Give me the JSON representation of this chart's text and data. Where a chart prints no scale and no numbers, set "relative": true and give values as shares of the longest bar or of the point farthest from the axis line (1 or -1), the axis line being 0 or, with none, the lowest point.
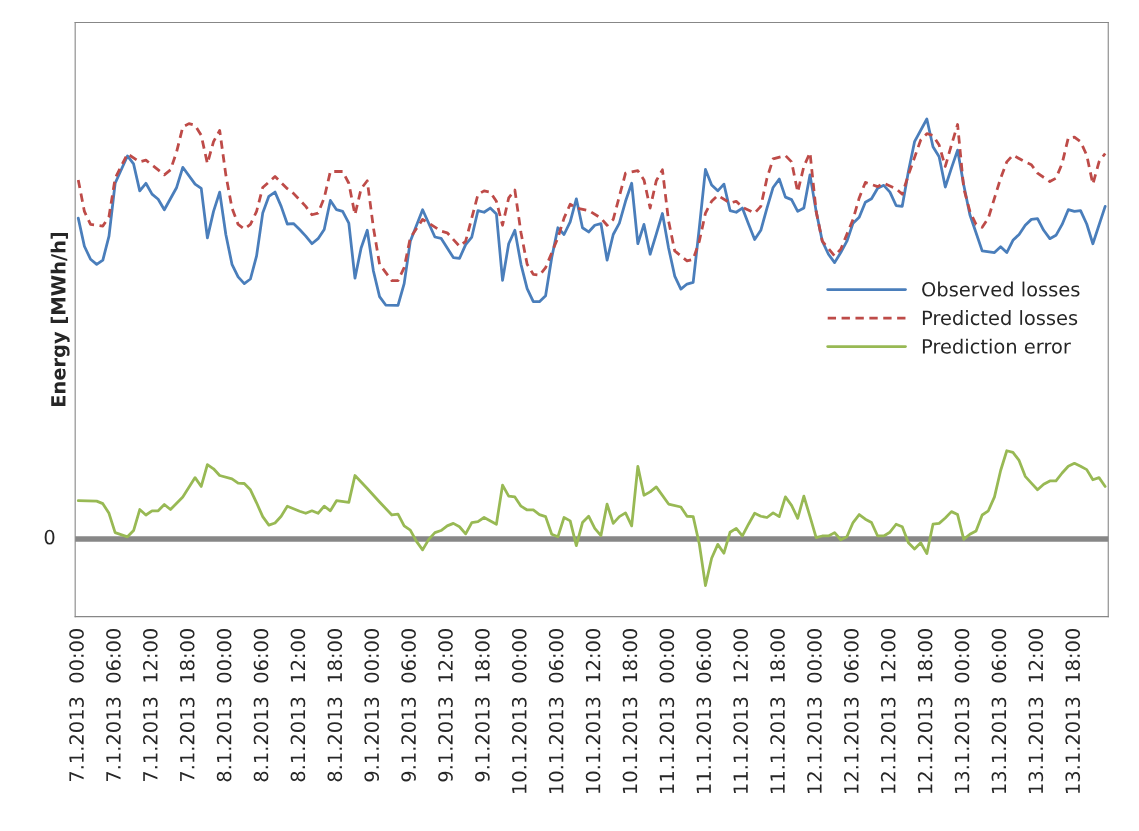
{
  "chart_data": {
    "type": "line",
    "relative": true,
    "ylabel": "Energy [MWh/h]",
    "xlim": [
      "2013-01-06T23:30",
      "2013-01-13T23:30"
    ],
    "xticks": [
      {
        "value": "2013-01-07T00:00",
        "label": "7.1.2013  00:00"
      },
      {
        "value": "2013-01-07T06:00",
        "label": "7.1.2013  06:00"
      },
      {
        "value": "2013-01-07T12:00",
        "label": "7.1.2013  12:00"
      },
      {
        "value": "2013-01-07T18:00",
        "label": "7.1.2013  18:00"
      },
      {
        "value": "2013-01-08T00:00",
        "label": "8.1.2013  00:00"
      },
      {
        "value": "2013-01-08T06:00",
        "label": "8.1.2013  06:00"
      },
      {
        "value": "2013-01-08T12:00",
        "label": "8.1.2013  12:00"
      },
      {
        "value": "2013-01-08T18:00",
        "label": "8.1.2013  18:00"
      },
      {
        "value": "2013-01-09T00:00",
        "label": "9.1.2013  00:00"
      },
      {
        "value": "2013-01-09T06:00",
        "label": "9.1.2013  06:00"
      },
      {
        "value": "2013-01-09T12:00",
        "label": "9.1.2013  12:00"
      },
      {
        "value": "2013-01-09T18:00",
        "label": "9.1.2013  18:00"
      },
      {
        "value": "2013-01-10T00:00",
        "label": "10.1.2013  00:00"
      },
      {
        "value": "2013-01-10T06:00",
        "label": "10.1.2013  06:00"
      },
      {
        "value": "2013-01-10T12:00",
        "label": "10.1.2013  12:00"
      },
      {
        "value": "2013-01-10T18:00",
        "label": "10.1.2013  18:00"
      },
      {
        "value": "2013-01-11T00:00",
        "label": "11.1.2013  00:00"
      },
      {
        "value": "2013-01-11T06:00",
        "label": "11.1.2013  06:00"
      },
      {
        "value": "2013-01-11T12:00",
        "label": "11.1.2013  12:00"
      },
      {
        "value": "2013-01-11T18:00",
        "label": "11.1.2013  18:00"
      },
      {
        "value": "2013-01-12T00:00",
        "label": "12.1.2013  00:00"
      },
      {
        "value": "2013-01-12T06:00",
        "label": "12.1.2013  06:00"
      },
      {
        "value": "2013-01-12T12:00",
        "label": "12.1.2013  12:00"
      },
      {
        "value": "2013-01-12T18:00",
        "label": "12.1.2013  18:00"
      },
      {
        "value": "2013-01-13T00:00",
        "label": "13.1.2013  00:00"
      },
      {
        "value": "2013-01-13T06:00",
        "label": "13.1.2013  06:00"
      },
      {
        "value": "2013-01-13T12:00",
        "label": "13.1.2013  12:00"
      },
      {
        "value": "2013-01-13T18:00",
        "label": "13.1.2013  18:00"
      }
    ],
    "grid": false,
    "legend": "right",
    "ref_lines": [
      {
        "axis": "y",
        "value": 0,
        "label": "0",
        "color": "#878787"
      }
    ],
    "series": [
      {
        "name": "Observed losses",
        "color": "#4a7ebb",
        "line_style": "solid",
        "x": [
          "2013-01-07T00:00",
          "2013-01-07T01:00",
          "2013-01-07T02:00",
          "2013-01-07T03:00",
          "2013-01-07T04:00",
          "2013-01-07T05:00",
          "2013-01-07T06:00",
          "2013-01-07T08:00",
          "2013-01-07T09:00",
          "2013-01-07T10:00",
          "2013-01-07T11:00",
          "2013-01-07T12:00",
          "2013-01-07T13:00",
          "2013-01-07T14:00",
          "2013-01-07T16:00",
          "2013-01-07T17:00",
          "2013-01-07T19:00",
          "2013-01-07T20:00",
          "2013-01-07T21:00",
          "2013-01-07T22:00",
          "2013-01-07T23:00",
          "2013-01-08T00:00",
          "2013-01-08T01:00",
          "2013-01-08T02:00",
          "2013-01-08T03:00",
          "2013-01-08T04:00",
          "2013-01-08T05:00",
          "2013-01-08T06:00",
          "2013-01-08T07:00",
          "2013-01-08T08:00",
          "2013-01-08T09:00",
          "2013-01-08T10:00",
          "2013-01-08T11:00",
          "2013-01-08T12:00",
          "2013-01-08T13:00",
          "2013-01-08T14:00",
          "2013-01-08T15:00",
          "2013-01-08T16:00",
          "2013-01-08T17:00",
          "2013-01-08T18:00",
          "2013-01-08T19:00",
          "2013-01-08T20:00",
          "2013-01-08T21:00",
          "2013-01-08T22:00",
          "2013-01-08T23:00",
          "2013-01-09T00:00",
          "2013-01-09T01:00",
          "2013-01-09T02:00",
          "2013-01-09T04:00",
          "2013-01-09T05:00",
          "2013-01-09T06:00",
          "2013-01-09T08:00",
          "2013-01-09T10:00",
          "2013-01-09T11:00",
          "2013-01-09T13:00",
          "2013-01-09T14:00",
          "2013-01-09T15:00",
          "2013-01-09T16:00",
          "2013-01-09T17:00",
          "2013-01-09T18:00",
          "2013-01-09T19:00",
          "2013-01-09T20:00",
          "2013-01-09T21:00",
          "2013-01-09T22:00",
          "2013-01-09T23:00",
          "2013-01-10T00:00",
          "2013-01-10T01:00",
          "2013-01-10T02:00",
          "2013-01-10T03:00",
          "2013-01-10T04:00",
          "2013-01-10T05:00",
          "2013-01-10T06:00",
          "2013-01-10T07:00",
          "2013-01-10T08:00",
          "2013-01-10T09:00",
          "2013-01-10T10:00",
          "2013-01-10T11:00",
          "2013-01-10T12:00",
          "2013-01-10T13:00",
          "2013-01-10T14:00",
          "2013-01-10T15:00",
          "2013-01-10T16:00",
          "2013-01-10T17:00",
          "2013-01-10T18:00",
          "2013-01-10T19:00",
          "2013-01-10T20:00",
          "2013-01-10T21:00",
          "2013-01-10T22:00",
          "2013-01-10T23:00",
          "2013-01-11T00:00",
          "2013-01-11T01:00",
          "2013-01-11T02:00",
          "2013-01-11T03:00",
          "2013-01-11T04:00",
          "2013-01-11T05:00",
          "2013-01-11T06:00",
          "2013-01-11T07:00",
          "2013-01-11T08:00",
          "2013-01-11T09:00",
          "2013-01-11T10:00",
          "2013-01-11T11:00",
          "2013-01-11T12:00",
          "2013-01-11T13:00",
          "2013-01-11T14:00",
          "2013-01-11T15:00",
          "2013-01-11T16:00",
          "2013-01-11T17:00",
          "2013-01-11T18:00",
          "2013-01-11T19:00",
          "2013-01-11T20:00",
          "2013-01-11T21:00",
          "2013-01-11T22:00",
          "2013-01-11T23:00",
          "2013-01-12T00:00",
          "2013-01-12T01:00",
          "2013-01-12T02:00",
          "2013-01-12T03:00",
          "2013-01-12T04:00",
          "2013-01-12T05:00",
          "2013-01-12T06:00",
          "2013-01-12T07:00",
          "2013-01-12T08:00",
          "2013-01-12T09:00",
          "2013-01-12T10:00",
          "2013-01-12T11:00",
          "2013-01-12T12:00",
          "2013-01-12T13:00",
          "2013-01-12T14:00",
          "2013-01-12T15:00",
          "2013-01-12T16:00",
          "2013-01-12T18:00",
          "2013-01-12T19:00",
          "2013-01-12T20:00",
          "2013-01-12T21:00",
          "2013-01-12T22:00",
          "2013-01-12T23:00",
          "2013-01-13T00:00",
          "2013-01-13T01:00",
          "2013-01-13T02:00",
          "2013-01-13T03:00",
          "2013-01-13T05:00",
          "2013-01-13T06:00",
          "2013-01-13T07:00",
          "2013-01-13T08:00",
          "2013-01-13T09:00",
          "2013-01-13T10:00",
          "2013-01-13T11:00",
          "2013-01-13T12:00",
          "2013-01-13T13:00",
          "2013-01-13T14:00",
          "2013-01-13T15:00",
          "2013-01-13T16:00",
          "2013-01-13T17:00",
          "2013-01-13T18:00",
          "2013-01-13T19:00",
          "2013-01-13T20:00",
          "2013-01-13T21:00",
          "2013-01-13T23:00"
        ],
        "values": [
          0.764,
          0.697,
          0.666,
          0.654,
          0.664,
          0.721,
          0.847,
          0.912,
          0.893,
          0.829,
          0.847,
          0.821,
          0.809,
          0.784,
          0.837,
          0.885,
          0.845,
          0.835,
          0.717,
          0.78,
          0.826,
          0.725,
          0.654,
          0.624,
          0.608,
          0.619,
          0.674,
          0.776,
          0.816,
          0.826,
          0.792,
          0.75,
          0.751,
          0.737,
          0.721,
          0.703,
          0.715,
          0.737,
          0.806,
          0.784,
          0.78,
          0.752,
          0.621,
          0.693,
          0.735,
          0.638,
          0.577,
          0.557,
          0.556,
          0.608,
          0.709,
          0.784,
          0.719,
          0.716,
          0.67,
          0.668,
          0.701,
          0.719,
          0.782,
          0.778,
          0.788,
          0.774,
          0.616,
          0.703,
          0.735,
          0.654,
          0.596,
          0.565,
          0.565,
          0.579,
          0.67,
          0.741,
          0.725,
          0.755,
          0.81,
          0.741,
          0.731,
          0.747,
          0.751,
          0.664,
          0.725,
          0.752,
          0.804,
          0.847,
          0.703,
          0.749,
          0.678,
          0.726,
          0.775,
          0.693,
          0.626,
          0.595,
          0.607,
          0.611,
          0.741,
          0.88,
          0.843,
          0.829,
          0.845,
          0.782,
          0.778,
          0.788,
          0.75,
          0.713,
          0.735,
          0.788,
          0.837,
          0.857,
          0.814,
          0.808,
          0.78,
          0.788,
          0.867,
          0.78,
          0.709,
          0.678,
          0.658,
          0.682,
          0.709,
          0.752,
          0.766,
          0.802,
          0.81,
          0.835,
          0.842,
          0.826,
          0.794,
          0.792,
          0.875,
          0.946,
          1.0,
          0.934,
          0.91,
          0.838,
          0.883,
          0.926,
          0.843,
          0.772,
          0.729,
          0.686,
          0.682,
          0.696,
          0.682,
          0.711,
          0.725,
          0.747,
          0.761,
          0.763,
          0.735,
          0.715,
          0.723,
          0.749,
          0.784,
          0.78,
          0.782,
          0.75,
          0.703,
          0.792
        ]
      },
      {
        "name": "Predicted losses",
        "color": "#be4b48",
        "line_style": "dashed",
        "x": [
          "2013-01-07T00:00",
          "2013-01-07T01:00",
          "2013-01-07T02:00",
          "2013-01-07T04:00",
          "2013-01-07T05:00",
          "2013-01-07T06:00",
          "2013-01-07T08:00",
          "2013-01-07T10:00",
          "2013-01-07T11:00",
          "2013-01-07T13:00",
          "2013-01-07T14:00",
          "2013-01-07T15:00",
          "2013-01-07T16:00",
          "2013-01-07T17:00",
          "2013-01-07T18:00",
          "2013-01-07T19:00",
          "2013-01-07T20:00",
          "2013-01-07T21:00",
          "2013-01-07T22:00",
          "2013-01-07T23:00",
          "2013-01-08T00:00",
          "2013-01-08T01:00",
          "2013-01-08T02:00",
          "2013-01-08T03:00",
          "2013-01-08T04:00",
          "2013-01-08T05:00",
          "2013-01-08T06:00",
          "2013-01-08T08:00",
          "2013-01-08T10:00",
          "2013-01-08T11:00",
          "2013-01-08T13:00",
          "2013-01-08T14:00",
          "2013-01-08T15:00",
          "2013-01-08T16:00",
          "2013-01-08T17:00",
          "2013-01-08T19:00",
          "2013-01-08T20:00",
          "2013-01-08T21:00",
          "2013-01-08T22:00",
          "2013-01-08T23:00",
          "2013-01-09T00:00",
          "2013-01-09T01:00",
          "2013-01-09T03:00",
          "2013-01-09T04:00",
          "2013-01-09T05:00",
          "2013-01-09T06:00",
          "2013-01-09T08:00",
          "2013-01-09T09:00",
          "2013-01-09T11:00",
          "2013-01-09T12:00",
          "2013-01-09T14:00",
          "2013-01-09T15:00",
          "2013-01-09T17:00",
          "2013-01-09T18:00",
          "2013-01-09T19:00",
          "2013-01-09T20:00",
          "2013-01-09T21:00",
          "2013-01-09T22:00",
          "2013-01-09T23:00",
          "2013-01-10T00:00",
          "2013-01-10T01:00",
          "2013-01-10T02:00",
          "2013-01-10T03:00",
          "2013-01-10T04:00",
          "2013-01-10T06:00",
          "2013-01-10T07:00",
          "2013-01-10T08:00",
          "2013-01-10T09:00",
          "2013-01-10T11:00",
          "2013-01-10T13:00",
          "2013-01-10T14:00",
          "2013-01-10T15:00",
          "2013-01-10T17:00",
          "2013-01-10T19:00",
          "2013-01-10T20:00",
          "2013-01-10T21:00",
          "2013-01-10T22:00",
          "2013-01-10T23:00",
          "2013-01-11T00:00",
          "2013-01-11T01:00",
          "2013-01-11T03:00",
          "2013-01-11T04:00",
          "2013-01-11T05:00",
          "2013-01-11T06:00",
          "2013-01-11T07:00",
          "2013-01-11T08:00",
          "2013-01-11T10:00",
          "2013-01-11T11:00",
          "2013-01-11T12:00",
          "2013-01-11T14:00",
          "2013-01-11T15:00",
          "2013-01-11T16:00",
          "2013-01-11T17:00",
          "2013-01-11T19:00",
          "2013-01-11T20:00",
          "2013-01-11T21:00",
          "2013-01-11T22:00",
          "2013-01-11T23:00",
          "2013-01-12T00:00",
          "2013-01-12T01:00",
          "2013-01-12T03:00",
          "2013-01-12T04:00",
          "2013-01-12T06:00",
          "2013-01-12T07:00",
          "2013-01-12T08:00",
          "2013-01-12T10:00",
          "2013-01-12T11:00",
          "2013-01-12T13:00",
          "2013-01-12T14:00",
          "2013-01-12T15:00",
          "2013-01-12T17:00",
          "2013-01-12T18:00",
          "2013-01-12T19:00",
          "2013-01-12T20:00",
          "2013-01-12T21:00",
          "2013-01-12T22:00",
          "2013-01-12T23:00",
          "2013-01-13T00:00",
          "2013-01-13T01:00",
          "2013-01-13T02:00",
          "2013-01-13T03:00",
          "2013-01-13T04:00",
          "2013-01-13T06:00",
          "2013-01-13T07:00",
          "2013-01-13T08:00",
          "2013-01-13T10:00",
          "2013-01-13T11:00",
          "2013-01-13T12:00",
          "2013-01-13T14:00",
          "2013-01-13T15:00",
          "2013-01-13T16:00",
          "2013-01-13T17:00",
          "2013-01-13T18:00",
          "2013-01-13T19:00",
          "2013-01-13T20:00",
          "2013-01-13T21:00",
          "2013-01-13T22:00",
          "2013-01-13T23:00"
        ],
        "values": [
          0.855,
          0.78,
          0.749,
          0.745,
          0.768,
          0.859,
          0.917,
          0.898,
          0.902,
          0.879,
          0.867,
          0.879,
          0.922,
          0.981,
          0.989,
          0.985,
          0.961,
          0.894,
          0.946,
          0.973,
          0.867,
          0.788,
          0.749,
          0.738,
          0.749,
          0.78,
          0.837,
          0.863,
          0.834,
          0.823,
          0.792,
          0.772,
          0.776,
          0.812,
          0.875,
          0.875,
          0.847,
          0.772,
          0.834,
          0.853,
          0.741,
          0.654,
          0.615,
          0.615,
          0.646,
          0.717,
          0.761,
          0.752,
          0.733,
          0.729,
          0.697,
          0.709,
          0.82,
          0.829,
          0.826,
          0.804,
          0.747,
          0.812,
          0.831,
          0.729,
          0.654,
          0.63,
          0.628,
          0.646,
          0.717,
          0.764,
          0.797,
          0.788,
          0.782,
          0.764,
          0.747,
          0.761,
          0.871,
          0.877,
          0.855,
          0.788,
          0.853,
          0.879,
          0.757,
          0.686,
          0.662,
          0.666,
          0.709,
          0.776,
          0.804,
          0.818,
          0.8,
          0.804,
          0.79,
          0.776,
          0.792,
          0.859,
          0.905,
          0.913,
          0.898,
          0.826,
          0.887,
          0.92,
          0.78,
          0.709,
          0.674,
          0.69,
          0.761,
          0.812,
          0.849,
          0.839,
          0.847,
          0.834,
          0.821,
          0.867,
          0.95,
          0.965,
          0.961,
          0.938,
          0.887,
          0.938,
          0.987,
          0.835,
          0.78,
          0.749,
          0.742,
          0.764,
          0.859,
          0.898,
          0.914,
          0.898,
          0.891,
          0.871,
          0.851,
          0.859,
          0.894,
          0.955,
          0.957,
          0.946,
          0.914,
          0.845,
          0.898,
          0.918
        ]
      },
      {
        "name": "Prediction error",
        "color": "#98b954",
        "line_style": "solid",
        "x": [
          "2013-01-07T00:00",
          "2013-01-07T03:00",
          "2013-01-07T04:00",
          "2013-01-07T05:00",
          "2013-01-07T06:00",
          "2013-01-07T08:00",
          "2013-01-07T09:00",
          "2013-01-07T10:00",
          "2013-01-07T11:00",
          "2013-01-07T12:00",
          "2013-01-07T13:00",
          "2013-01-07T14:00",
          "2013-01-07T15:00",
          "2013-01-07T17:00",
          "2013-01-07T19:00",
          "2013-01-07T20:00",
          "2013-01-07T21:00",
          "2013-01-07T22:00",
          "2013-01-07T23:00",
          "2013-01-08T01:00",
          "2013-01-08T02:00",
          "2013-01-08T03:00",
          "2013-01-08T04:00",
          "2013-01-08T05:00",
          "2013-01-08T06:00",
          "2013-01-08T07:00",
          "2013-01-08T08:00",
          "2013-01-08T09:00",
          "2013-01-08T10:00",
          "2013-01-08T12:00",
          "2013-01-08T13:00",
          "2013-01-08T14:00",
          "2013-01-08T15:00",
          "2013-01-08T16:00",
          "2013-01-08T17:00",
          "2013-01-08T18:00",
          "2013-01-08T20:00",
          "2013-01-08T21:00",
          "2013-01-08T23:00",
          "2013-01-09T01:00",
          "2013-01-09T03:00",
          "2013-01-09T04:00",
          "2013-01-09T05:00",
          "2013-01-09T06:00",
          "2013-01-09T07:00",
          "2013-01-09T08:00",
          "2013-01-09T09:00",
          "2013-01-09T10:00",
          "2013-01-09T11:00",
          "2013-01-09T12:00",
          "2013-01-09T13:00",
          "2013-01-09T14:00",
          "2013-01-09T15:00",
          "2013-01-09T16:00",
          "2013-01-09T17:00",
          "2013-01-09T18:00",
          "2013-01-09T20:00",
          "2013-01-09T21:00",
          "2013-01-09T22:00",
          "2013-01-09T23:00",
          "2013-01-10T00:00",
          "2013-01-10T01:00",
          "2013-01-10T02:00",
          "2013-01-10T03:00",
          "2013-01-10T04:00",
          "2013-01-10T05:00",
          "2013-01-10T06:00",
          "2013-01-10T07:00",
          "2013-01-10T08:00",
          "2013-01-10T09:00",
          "2013-01-10T10:00",
          "2013-01-10T11:00",
          "2013-01-10T12:00",
          "2013-01-10T13:00",
          "2013-01-10T14:00",
          "2013-01-10T15:00",
          "2013-01-10T16:00",
          "2013-01-10T17:00",
          "2013-01-10T18:00",
          "2013-01-10T19:00",
          "2013-01-10T20:00",
          "2013-01-10T21:00",
          "2013-01-10T22:00",
          "2013-01-11T00:00",
          "2013-01-11T02:00",
          "2013-01-11T03:00",
          "2013-01-11T04:00",
          "2013-01-11T05:00",
          "2013-01-11T06:00",
          "2013-01-11T07:00",
          "2013-01-11T08:00",
          "2013-01-11T09:00",
          "2013-01-11T10:00",
          "2013-01-11T11:00",
          "2013-01-11T12:00",
          "2013-01-11T13:00",
          "2013-01-11T14:00",
          "2013-01-11T15:00",
          "2013-01-11T16:00",
          "2013-01-11T17:00",
          "2013-01-11T18:00",
          "2013-01-11T19:00",
          "2013-01-11T20:00",
          "2013-01-11T21:00",
          "2013-01-11T22:00",
          "2013-01-11T23:00",
          "2013-01-12T00:00",
          "2013-01-12T01:00",
          "2013-01-12T02:00",
          "2013-01-12T03:00",
          "2013-01-12T04:00",
          "2013-01-12T05:00",
          "2013-01-12T06:00",
          "2013-01-12T07:00",
          "2013-01-12T08:00",
          "2013-01-12T09:00",
          "2013-01-12T10:00",
          "2013-01-12T11:00",
          "2013-01-12T12:00",
          "2013-01-12T13:00",
          "2013-01-12T14:00",
          "2013-01-12T15:00",
          "2013-01-12T16:00",
          "2013-01-12T17:00",
          "2013-01-12T18:00",
          "2013-01-12T19:00",
          "2013-01-12T20:00",
          "2013-01-12T21:00",
          "2013-01-12T22:00",
          "2013-01-12T23:00",
          "2013-01-13T00:00",
          "2013-01-13T01:00",
          "2013-01-13T02:00",
          "2013-01-13T03:00",
          "2013-01-13T04:00",
          "2013-01-13T05:00",
          "2013-01-13T06:00",
          "2013-01-13T07:00",
          "2013-01-13T08:00",
          "2013-01-13T09:00",
          "2013-01-13T10:00",
          "2013-01-13T11:00",
          "2013-01-13T12:00",
          "2013-01-13T13:00",
          "2013-01-13T14:00",
          "2013-01-13T15:00",
          "2013-01-13T16:00",
          "2013-01-13T17:00",
          "2013-01-13T18:00",
          "2013-01-13T19:00",
          "2013-01-13T20:00",
          "2013-01-13T21:00",
          "2013-01-13T22:00",
          "2013-01-13T23:00"
        ],
        "values": [
          0.091,
          0.09,
          0.084,
          0.061,
          0.015,
          0.005,
          0.02,
          0.07,
          0.057,
          0.067,
          0.067,
          0.082,
          0.07,
          0.1,
          0.146,
          0.125,
          0.177,
          0.167,
          0.151,
          0.143,
          0.133,
          0.132,
          0.117,
          0.086,
          0.053,
          0.033,
          0.038,
          0.054,
          0.078,
          0.066,
          0.061,
          0.067,
          0.061,
          0.078,
          0.067,
          0.091,
          0.087,
          0.151,
          0.12,
          0.088,
          0.057,
          0.059,
          0.031,
          0.021,
          -0.006,
          -0.026,
          -0.001,
          0.015,
          0.02,
          0.031,
          0.037,
          0.029,
          0.012,
          0.039,
          0.041,
          0.051,
          0.035,
          0.128,
          0.102,
          0.1,
          0.078,
          0.069,
          0.069,
          0.058,
          0.053,
          0.011,
          0.005,
          0.051,
          0.043,
          -0.016,
          0.039,
          0.054,
          0.025,
          0.008,
          0.083,
          0.037,
          0.053,
          0.062,
          0.031,
          0.173,
          0.104,
          0.112,
          0.124,
          0.083,
          0.076,
          0.054,
          0.053,
          -0.012,
          -0.111,
          -0.046,
          -0.013,
          -0.034,
          0.016,
          0.025,
          0.007,
          0.035,
          0.061,
          0.054,
          0.051,
          0.062,
          0.053,
          0.1,
          0.08,
          0.049,
          0.102,
          0.053,
          0.003,
          0.007,
          0.007,
          0.015,
          -0.002,
          0.005,
          0.039,
          0.058,
          0.047,
          0.039,
          0.007,
          0.007,
          0.016,
          0.035,
          0.029,
          -0.009,
          -0.024,
          -0.009,
          -0.035,
          0.035,
          0.037,
          0.05,
          0.065,
          0.058,
          -0.001,
          0.011,
          0.019,
          0.057,
          0.067,
          0.1,
          0.163,
          0.21,
          0.206,
          0.187,
          0.149,
          0.133,
          0.117,
          0.13,
          0.138,
          0.138,
          0.157,
          0.173,
          0.18,
          0.173,
          0.165,
          0.141,
          0.146,
          0.125
        ]
      }
    ]
  }
}
